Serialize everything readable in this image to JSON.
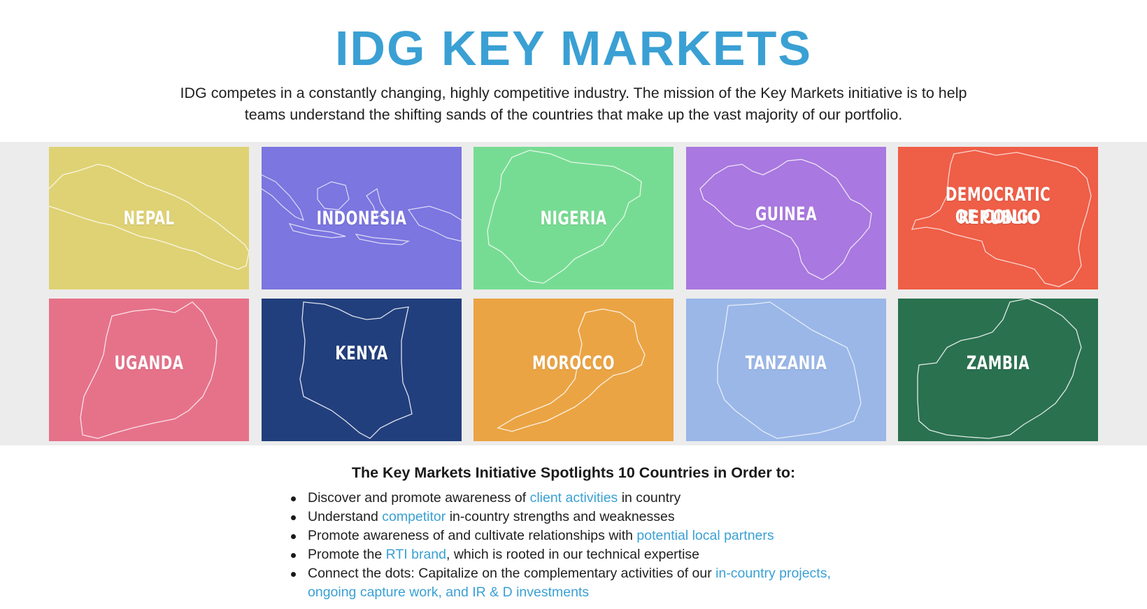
{
  "title": "IDG KEY MARKETS",
  "intro": "IDG competes in a constantly changing, highly competitive industry. The mission of the Key Markets initiative is to help teams understand the shifting sands of the countries that make up the vast majority of our portfolio.",
  "tiles": [
    {
      "label": "NEPAL",
      "color": "#dfd274"
    },
    {
      "label": "INDONESIA",
      "color": "#7b76e0"
    },
    {
      "label": "NIGERIA",
      "color": "#77dc93"
    },
    {
      "label": "GUINEA",
      "color": "#a978e0"
    },
    {
      "label_line1": "DEMOCRATIC REPUBLIC",
      "label_line2": "OF CONGO",
      "color": "#ef5e47"
    },
    {
      "label": "UGANDA",
      "color": "#e6728a"
    },
    {
      "label": "KENYA",
      "color": "#223f7d"
    },
    {
      "label": "MOROCCO",
      "color": "#eba444"
    },
    {
      "label": "TANZANIA",
      "color": "#9ab7e8"
    },
    {
      "label": "ZAMBIA",
      "color": "#2a7150"
    }
  ],
  "list_heading": "The Key Markets Initiative Spotlights 10 Countries in Order to:",
  "bullets": [
    {
      "pre": "Discover and promote awareness of ",
      "link": "client activities",
      "post": " in country"
    },
    {
      "pre": "Understand ",
      "link": "competitor",
      "post": " in-country strengths and weaknesses"
    },
    {
      "pre": "Promote awareness of and cultivate relationships with ",
      "link": "potential local partners",
      "post": ""
    },
    {
      "pre": "Promote the ",
      "link": "RTI brand",
      "post": ", which is rooted in our technical expertise"
    },
    {
      "pre": "Connect the dots: Capitalize on the complementary activities of our ",
      "link": "in-country projects, ongoing capture work, and IR & D investments",
      "post": ""
    }
  ]
}
